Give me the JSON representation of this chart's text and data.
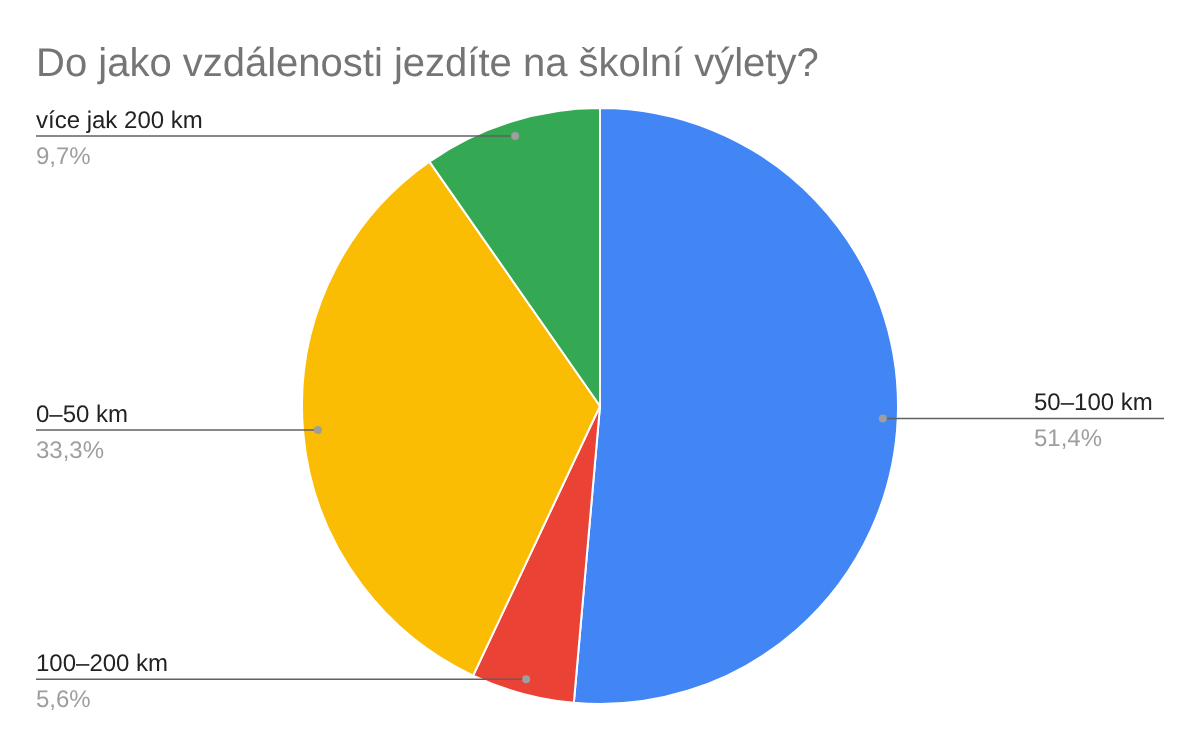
{
  "chart_data": {
    "type": "pie",
    "title": "Do jako vzdálenosti jezdíte na školní výlety?",
    "categories": [
      "50–100 km",
      "100–200 km",
      "0–50 km",
      "více jak 200 km"
    ],
    "values": [
      51.4,
      5.6,
      33.3,
      9.7
    ],
    "colors": [
      "#4285f4",
      "#ea4335",
      "#fbbc04",
      "#34a853"
    ],
    "value_labels": [
      "51,4%",
      "5,6%",
      "33,3%",
      "9,7%"
    ],
    "legend": false
  }
}
